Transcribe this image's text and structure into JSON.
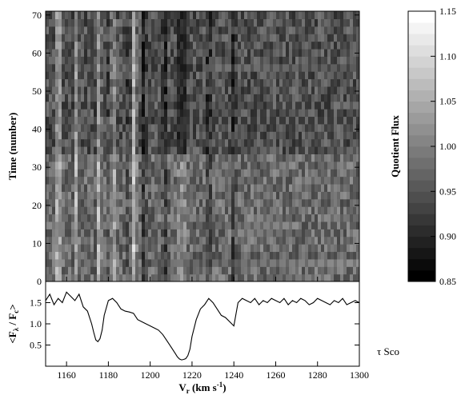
{
  "chart_data": [
    {
      "type": "heatmap",
      "title": "",
      "xlabel": "",
      "ylabel": "Time (number)",
      "xlim": [
        1150,
        1300
      ],
      "ylim": [
        0,
        71
      ],
      "yticks": [
        0,
        10,
        20,
        30,
        40,
        50,
        60,
        70
      ],
      "dark_lines_x": [
        1163,
        1174,
        1181,
        1190,
        1197,
        1207,
        1215,
        1228,
        1240
      ],
      "bright_bands_x": [
        1156,
        1164,
        1175,
        1182,
        1192,
        1215
      ],
      "colorscale": "grayscale",
      "grid": false
    },
    {
      "type": "line",
      "title": "",
      "xlabel": "V_r (km s^-1)",
      "ylabel": "<F_λ / F_c>",
      "xlim": [
        1150,
        1300
      ],
      "ylim": [
        0,
        2.0
      ],
      "xticks": [
        1160,
        1180,
        1200,
        1220,
        1240,
        1260,
        1280,
        1300
      ],
      "yticks": [
        0.5,
        1.0,
        1.5
      ],
      "series": [
        {
          "x": [
            1150,
            1152,
            1154,
            1156,
            1158,
            1160,
            1162,
            1164,
            1166,
            1168,
            1170,
            1172,
            1173,
            1174,
            1175,
            1176,
            1177,
            1178,
            1180,
            1182,
            1184,
            1186,
            1188,
            1190,
            1192,
            1194,
            1196,
            1198,
            1200,
            1202,
            1204,
            1206,
            1208,
            1210,
            1212,
            1213,
            1214,
            1215,
            1216,
            1217,
            1218,
            1219,
            1220,
            1222,
            1224,
            1226,
            1228,
            1230,
            1232,
            1234,
            1236,
            1238,
            1240,
            1242,
            1244,
            1246,
            1248,
            1250,
            1252,
            1254,
            1256,
            1258,
            1260,
            1262,
            1264,
            1266,
            1268,
            1270,
            1272,
            1274,
            1276,
            1278,
            1280,
            1282,
            1284,
            1286,
            1288,
            1290,
            1292,
            1294,
            1296,
            1298,
            1300
          ],
          "y": [
            1.55,
            1.7,
            1.45,
            1.6,
            1.5,
            1.75,
            1.65,
            1.55,
            1.7,
            1.4,
            1.3,
            1.0,
            0.8,
            0.62,
            0.58,
            0.65,
            0.85,
            1.2,
            1.55,
            1.6,
            1.5,
            1.35,
            1.3,
            1.28,
            1.25,
            1.1,
            1.05,
            1.0,
            0.95,
            0.9,
            0.85,
            0.75,
            0.6,
            0.45,
            0.3,
            0.22,
            0.17,
            0.15,
            0.16,
            0.18,
            0.25,
            0.4,
            0.7,
            1.1,
            1.35,
            1.45,
            1.6,
            1.5,
            1.35,
            1.2,
            1.15,
            1.05,
            0.95,
            1.5,
            1.6,
            1.55,
            1.5,
            1.6,
            1.45,
            1.55,
            1.5,
            1.6,
            1.55,
            1.5,
            1.6,
            1.45,
            1.55,
            1.5,
            1.6,
            1.55,
            1.45,
            1.5,
            1.6,
            1.55,
            1.5,
            1.45,
            1.55,
            1.5,
            1.6,
            1.45,
            1.5,
            1.55,
            1.5
          ]
        }
      ],
      "annotations": [
        "τ Sco"
      ],
      "grid": false
    },
    {
      "type": "heatmap",
      "title": "",
      "xlabel": "",
      "ylabel": "Quotient Flux",
      "ylim": [
        0.85,
        1.15
      ],
      "yticks": [
        0.85,
        0.9,
        0.95,
        1.0,
        1.05,
        1.1,
        1.15
      ],
      "colorscale": "grayscale"
    }
  ],
  "labels": {
    "heat_yticks": [
      "0",
      "10",
      "20",
      "30",
      "40",
      "50",
      "60",
      "70"
    ],
    "heat_ylabel": "Time (number)",
    "spec_ylabel_left": "<F",
    "spec_ylabel_sub1": "λ",
    "spec_ylabel_mid": " / F",
    "spec_ylabel_sub2": "c",
    "spec_ylabel_right": ">",
    "spec_yticks": [
      "0.5",
      "1.0",
      "1.5"
    ],
    "xticks": [
      "1160",
      "1180",
      "1200",
      "1220",
      "1240",
      "1260",
      "1280",
      "1300"
    ],
    "xlabel_v": "V",
    "xlabel_sub": "r",
    "xlabel_units": " (km s",
    "xlabel_sup": "-1",
    "xlabel_close": ")",
    "annotation": "τ Sco",
    "cbar_ticks": [
      "0.85",
      "0.90",
      "0.95",
      "1.00",
      "1.05",
      "1.10",
      "1.15"
    ],
    "cbar_label": "Quotient Flux"
  }
}
